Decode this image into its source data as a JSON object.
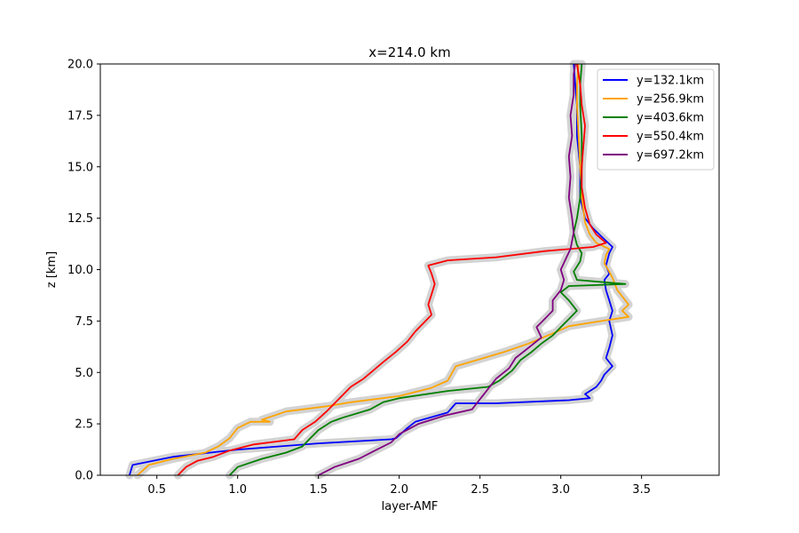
{
  "chart_data": {
    "type": "line",
    "title": "x=214.0 km",
    "xlabel": "layer-AMF",
    "ylabel": "z [km]",
    "xlim": [
      0.15,
      3.98
    ],
    "ylim": [
      0,
      20
    ],
    "xticks": [
      "0.5",
      "1.0",
      "1.5",
      "2.0",
      "2.5",
      "3.0",
      "3.5"
    ],
    "yticks": [
      "0.0",
      "2.5",
      "5.0",
      "7.5",
      "10.0",
      "12.5",
      "15.0",
      "17.5",
      "20.0"
    ],
    "grid": false,
    "legend_position": "top-right",
    "uncertainty_band_color": "#d3d3d3",
    "series": [
      {
        "name": "y=132.1km",
        "color": "#0000ff",
        "points": [
          [
            0.33,
            0.0
          ],
          [
            0.35,
            0.5
          ],
          [
            0.6,
            0.9
          ],
          [
            1.0,
            1.25
          ],
          [
            1.5,
            1.55
          ],
          [
            1.95,
            1.75
          ],
          [
            1.98,
            1.8
          ],
          [
            2.05,
            2.3
          ],
          [
            2.1,
            2.6
          ],
          [
            2.3,
            3.05
          ],
          [
            2.35,
            3.5
          ],
          [
            2.6,
            3.5
          ],
          [
            3.05,
            3.65
          ],
          [
            3.18,
            3.75
          ],
          [
            3.15,
            3.95
          ],
          [
            3.22,
            4.3
          ],
          [
            3.25,
            4.6
          ],
          [
            3.27,
            4.9
          ],
          [
            3.32,
            5.3
          ],
          [
            3.28,
            5.7
          ],
          [
            3.3,
            6.2
          ],
          [
            3.32,
            6.8
          ],
          [
            3.3,
            7.5
          ],
          [
            3.32,
            8.0
          ],
          [
            3.3,
            8.5
          ],
          [
            3.28,
            9.0
          ],
          [
            3.27,
            9.5
          ],
          [
            3.3,
            9.8
          ],
          [
            3.28,
            10.2
          ],
          [
            3.3,
            10.8
          ],
          [
            3.32,
            11.1
          ],
          [
            3.28,
            11.4
          ],
          [
            3.2,
            12.0
          ],
          [
            3.15,
            12.5
          ],
          [
            3.12,
            13.5
          ],
          [
            3.12,
            15.0
          ],
          [
            3.1,
            16.5
          ],
          [
            3.1,
            18.0
          ],
          [
            3.09,
            19.0
          ],
          [
            3.08,
            20.0
          ]
        ]
      },
      {
        "name": "y=256.9km",
        "color": "#ffa500",
        "points": [
          [
            0.38,
            0.0
          ],
          [
            0.45,
            0.5
          ],
          [
            0.6,
            0.8
          ],
          [
            0.8,
            1.1
          ],
          [
            0.88,
            1.4
          ],
          [
            0.95,
            1.8
          ],
          [
            1.0,
            2.3
          ],
          [
            1.08,
            2.6
          ],
          [
            1.2,
            2.6
          ],
          [
            1.15,
            2.7
          ],
          [
            1.3,
            3.1
          ],
          [
            1.55,
            3.35
          ],
          [
            1.7,
            3.55
          ],
          [
            2.0,
            3.85
          ],
          [
            2.2,
            4.25
          ],
          [
            2.3,
            4.6
          ],
          [
            2.35,
            5.3
          ],
          [
            2.5,
            5.65
          ],
          [
            2.65,
            6.0
          ],
          [
            2.8,
            6.4
          ],
          [
            2.95,
            6.9
          ],
          [
            3.05,
            7.25
          ],
          [
            3.25,
            7.5
          ],
          [
            3.42,
            7.7
          ],
          [
            3.38,
            8.0
          ],
          [
            3.42,
            8.3
          ],
          [
            3.38,
            8.7
          ],
          [
            3.35,
            9.0
          ],
          [
            3.32,
            9.6
          ],
          [
            3.3,
            9.9
          ],
          [
            3.27,
            10.3
          ],
          [
            3.28,
            10.7
          ],
          [
            3.3,
            11.0
          ],
          [
            3.22,
            11.3
          ],
          [
            3.18,
            11.7
          ],
          [
            3.15,
            12.3
          ],
          [
            3.13,
            13.5
          ],
          [
            3.12,
            15.0
          ],
          [
            3.11,
            16.5
          ],
          [
            3.1,
            18.0
          ],
          [
            3.1,
            19.0
          ],
          [
            3.11,
            20.0
          ]
        ]
      },
      {
        "name": "y=403.6km",
        "color": "#008000",
        "points": [
          [
            0.95,
            0.0
          ],
          [
            1.0,
            0.4
          ],
          [
            1.15,
            0.8
          ],
          [
            1.3,
            1.1
          ],
          [
            1.4,
            1.4
          ],
          [
            1.45,
            1.8
          ],
          [
            1.5,
            2.2
          ],
          [
            1.58,
            2.6
          ],
          [
            1.65,
            2.8
          ],
          [
            1.82,
            3.2
          ],
          [
            1.9,
            3.55
          ],
          [
            2.0,
            3.75
          ],
          [
            2.3,
            4.1
          ],
          [
            2.55,
            4.3
          ],
          [
            2.62,
            4.6
          ],
          [
            2.7,
            5.1
          ],
          [
            2.75,
            5.6
          ],
          [
            2.82,
            6.0
          ],
          [
            2.88,
            6.4
          ],
          [
            2.95,
            6.8
          ],
          [
            3.0,
            7.2
          ],
          [
            3.05,
            7.6
          ],
          [
            3.1,
            8.0
          ],
          [
            3.05,
            8.5
          ],
          [
            3.0,
            8.9
          ],
          [
            3.05,
            9.2
          ],
          [
            3.4,
            9.3
          ],
          [
            3.1,
            9.5
          ],
          [
            3.08,
            9.9
          ],
          [
            3.12,
            10.4
          ],
          [
            3.13,
            10.8
          ],
          [
            3.1,
            11.2
          ],
          [
            3.08,
            11.8
          ],
          [
            3.1,
            12.5
          ],
          [
            3.12,
            13.5
          ],
          [
            3.13,
            15.0
          ],
          [
            3.13,
            16.5
          ],
          [
            3.12,
            18.0
          ],
          [
            3.12,
            19.0
          ],
          [
            3.13,
            20.0
          ]
        ]
      },
      {
        "name": "y=550.4km",
        "color": "#ff0000",
        "points": [
          [
            0.63,
            0.0
          ],
          [
            0.68,
            0.4
          ],
          [
            0.75,
            0.7
          ],
          [
            0.85,
            0.9
          ],
          [
            0.95,
            1.2
          ],
          [
            1.1,
            1.5
          ],
          [
            1.35,
            1.75
          ],
          [
            1.4,
            2.2
          ],
          [
            1.48,
            2.6
          ],
          [
            1.55,
            3.1
          ],
          [
            1.6,
            3.5
          ],
          [
            1.65,
            3.9
          ],
          [
            1.7,
            4.3
          ],
          [
            1.78,
            4.7
          ],
          [
            1.84,
            5.1
          ],
          [
            1.9,
            5.5
          ],
          [
            1.98,
            6.0
          ],
          [
            2.05,
            6.5
          ],
          [
            2.1,
            7.0
          ],
          [
            2.15,
            7.4
          ],
          [
            2.2,
            7.8
          ],
          [
            2.18,
            8.3
          ],
          [
            2.2,
            8.8
          ],
          [
            2.22,
            9.3
          ],
          [
            2.2,
            9.8
          ],
          [
            2.18,
            10.2
          ],
          [
            2.3,
            10.45
          ],
          [
            2.6,
            10.6
          ],
          [
            2.9,
            10.9
          ],
          [
            3.2,
            11.1
          ],
          [
            3.28,
            11.3
          ],
          [
            3.22,
            11.7
          ],
          [
            3.18,
            12.2
          ],
          [
            3.15,
            13.0
          ],
          [
            3.13,
            14.0
          ],
          [
            3.13,
            15.0
          ],
          [
            3.14,
            16.0
          ],
          [
            3.15,
            17.0
          ],
          [
            3.13,
            18.0
          ],
          [
            3.12,
            19.0
          ],
          [
            3.1,
            20.0
          ]
        ]
      },
      {
        "name": "y=697.2km",
        "color": "#800080",
        "points": [
          [
            1.5,
            0.0
          ],
          [
            1.6,
            0.4
          ],
          [
            1.75,
            0.8
          ],
          [
            1.85,
            1.2
          ],
          [
            1.95,
            1.6
          ],
          [
            2.0,
            2.0
          ],
          [
            2.12,
            2.5
          ],
          [
            2.28,
            2.9
          ],
          [
            2.45,
            3.2
          ],
          [
            2.5,
            3.7
          ],
          [
            2.55,
            4.2
          ],
          [
            2.6,
            4.7
          ],
          [
            2.68,
            5.2
          ],
          [
            2.72,
            5.7
          ],
          [
            2.8,
            6.2
          ],
          [
            2.88,
            6.7
          ],
          [
            2.85,
            7.2
          ],
          [
            2.9,
            7.6
          ],
          [
            2.95,
            8.0
          ],
          [
            2.95,
            8.5
          ],
          [
            3.0,
            9.0
          ],
          [
            3.02,
            9.5
          ],
          [
            3.0,
            10.0
          ],
          [
            3.03,
            10.5
          ],
          [
            3.06,
            11.0
          ],
          [
            3.08,
            11.8
          ],
          [
            3.07,
            12.5
          ],
          [
            3.05,
            13.5
          ],
          [
            3.06,
            14.5
          ],
          [
            3.05,
            15.5
          ],
          [
            3.07,
            16.5
          ],
          [
            3.06,
            17.5
          ],
          [
            3.08,
            18.5
          ],
          [
            3.08,
            19.5
          ],
          [
            3.09,
            20.0
          ]
        ]
      }
    ]
  }
}
